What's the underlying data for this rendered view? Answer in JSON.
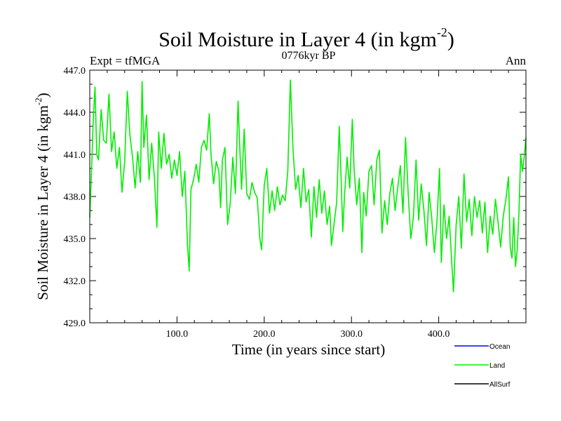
{
  "chart_data": {
    "type": "line",
    "title": "Soil Moisture in Layer 4 (in kgm",
    "title_sup": "-2",
    "title_close": ")",
    "subtitle": "0776kyr BP",
    "left_label": "Expt = tfMGA",
    "right_label": "Ann",
    "xlabel": "Time (in years since start)",
    "ylabel": "Soil Moisture in Layer 4 (in kgm",
    "ylabel_sup": "-2",
    "ylabel_close": ")",
    "xlim": [
      0,
      500
    ],
    "ylim": [
      429.0,
      447.0
    ],
    "x_ticks": [
      100,
      200,
      300,
      400
    ],
    "x_tick_labels": [
      "100.0",
      "200.0",
      "300.0",
      "400.0"
    ],
    "y_ticks": [
      429,
      432,
      435,
      438,
      441,
      444,
      447
    ],
    "y_tick_labels": [
      "429.0",
      "432.0",
      "435.0",
      "438.0",
      "441.0",
      "444.0",
      "447.0"
    ],
    "series": [
      {
        "name": "Land",
        "color": "#00ee00",
        "points": [
          [
            0,
            436.5
          ],
          [
            2,
            439.8
          ],
          [
            4,
            443.5
          ],
          [
            6,
            445.8
          ],
          [
            8,
            441.0
          ],
          [
            10,
            440.6
          ],
          [
            13,
            444.2
          ],
          [
            16,
            442.0
          ],
          [
            19,
            441.8
          ],
          [
            22,
            445.3
          ],
          [
            25,
            441.2
          ],
          [
            28,
            442.6
          ],
          [
            31,
            440.0
          ],
          [
            34,
            441.5
          ],
          [
            37,
            438.3
          ],
          [
            40,
            440.5
          ],
          [
            43,
            445.5
          ],
          [
            46,
            442.4
          ],
          [
            49,
            440.8
          ],
          [
            52,
            438.6
          ],
          [
            55,
            441.2
          ],
          [
            58,
            439.0
          ],
          [
            60,
            446.2
          ],
          [
            62,
            441.5
          ],
          [
            65,
            443.8
          ],
          [
            68,
            439.2
          ],
          [
            71,
            441.8
          ],
          [
            74,
            439.4
          ],
          [
            77,
            435.8
          ],
          [
            79,
            442.6
          ],
          [
            82,
            440.0
          ],
          [
            85,
            442.5
          ],
          [
            88,
            440.3
          ],
          [
            91,
            441.0
          ],
          [
            94,
            439.3
          ],
          [
            97,
            440.6
          ],
          [
            100,
            439.5
          ],
          [
            103,
            441.2
          ],
          [
            106,
            438.0
          ],
          [
            109,
            439.8
          ],
          [
            112,
            434.6
          ],
          [
            114,
            432.7
          ],
          [
            116,
            438.5
          ],
          [
            119,
            439.2
          ],
          [
            122,
            440.3
          ],
          [
            125,
            439.0
          ],
          [
            128,
            441.5
          ],
          [
            131,
            442.0
          ],
          [
            134,
            441.3
          ],
          [
            137,
            443.9
          ],
          [
            139,
            441.0
          ],
          [
            142,
            438.9
          ],
          [
            145,
            440.5
          ],
          [
            148,
            439.8
          ],
          [
            150,
            437.2
          ],
          [
            152,
            440.6
          ],
          [
            155,
            441.5
          ],
          [
            158,
            436.0
          ],
          [
            161,
            437.5
          ],
          [
            164,
            440.8
          ],
          [
            167,
            438.2
          ],
          [
            170,
            444.8
          ],
          [
            172,
            441.4
          ],
          [
            174,
            438.5
          ],
          [
            177,
            442.8
          ],
          [
            180,
            438.2
          ],
          [
            183,
            437.8
          ],
          [
            186,
            439.0
          ],
          [
            189,
            438.3
          ],
          [
            192,
            437.9
          ],
          [
            195,
            435.0
          ],
          [
            197,
            434.2
          ],
          [
            200,
            438.8
          ],
          [
            203,
            440.0
          ],
          [
            206,
            436.8
          ],
          [
            209,
            438.4
          ],
          [
            212,
            437.0
          ],
          [
            215,
            438.7
          ],
          [
            218,
            437.4
          ],
          [
            221,
            438.1
          ],
          [
            224,
            437.7
          ],
          [
            227,
            439.8
          ],
          [
            230,
            446.3
          ],
          [
            233,
            441.3
          ],
          [
            236,
            438.5
          ],
          [
            239,
            439.5
          ],
          [
            242,
            437.2
          ],
          [
            245,
            440.0
          ],
          [
            248,
            437.6
          ],
          [
            251,
            438.5
          ],
          [
            254,
            435.1
          ],
          [
            257,
            438.7
          ],
          [
            260,
            436.5
          ],
          [
            263,
            439.2
          ],
          [
            266,
            436.8
          ],
          [
            269,
            438.4
          ],
          [
            272,
            436.0
          ],
          [
            275,
            437.3
          ],
          [
            277,
            434.5
          ],
          [
            280,
            436.0
          ],
          [
            283,
            437.6
          ],
          [
            286,
            443.0
          ],
          [
            288,
            439.5
          ],
          [
            290,
            435.5
          ],
          [
            292,
            438.0
          ],
          [
            295,
            440.8
          ],
          [
            298,
            438.6
          ],
          [
            301,
            443.5
          ],
          [
            303,
            440.0
          ],
          [
            306,
            437.4
          ],
          [
            309,
            439.3
          ],
          [
            312,
            434.0
          ],
          [
            314,
            438.3
          ],
          [
            317,
            436.6
          ],
          [
            320,
            439.8
          ],
          [
            323,
            440.2
          ],
          [
            326,
            437.4
          ],
          [
            329,
            440.6
          ],
          [
            332,
            441.3
          ],
          [
            335,
            435.4
          ],
          [
            338,
            437.7
          ],
          [
            341,
            436.0
          ],
          [
            344,
            438.2
          ],
          [
            347,
            439.3
          ],
          [
            350,
            437.0
          ],
          [
            353,
            438.6
          ],
          [
            356,
            440.2
          ],
          [
            359,
            436.8
          ],
          [
            362,
            442.2
          ],
          [
            365,
            438.2
          ],
          [
            368,
            435.0
          ],
          [
            371,
            436.5
          ],
          [
            374,
            440.6
          ],
          [
            377,
            436.3
          ],
          [
            380,
            438.9
          ],
          [
            383,
            437.0
          ],
          [
            386,
            434.5
          ],
          [
            389,
            438.3
          ],
          [
            392,
            436.5
          ],
          [
            395,
            434.0
          ],
          [
            398,
            436.2
          ],
          [
            401,
            440.0
          ],
          [
            403,
            433.3
          ],
          [
            406,
            437.4
          ],
          [
            409,
            435.0
          ],
          [
            412,
            436.6
          ],
          [
            415,
            433.2
          ],
          [
            417,
            431.2
          ],
          [
            420,
            436.0
          ],
          [
            423,
            438.0
          ],
          [
            426,
            434.3
          ],
          [
            429,
            439.6
          ],
          [
            432,
            436.2
          ],
          [
            435,
            437.8
          ],
          [
            438,
            435.2
          ],
          [
            441,
            438.0
          ],
          [
            444,
            436.5
          ],
          [
            447,
            437.7
          ],
          [
            450,
            435.4
          ],
          [
            453,
            437.6
          ],
          [
            456,
            434.0
          ],
          [
            459,
            436.6
          ],
          [
            462,
            435.3
          ],
          [
            465,
            437.8
          ],
          [
            468,
            436.2
          ],
          [
            471,
            434.4
          ],
          [
            474,
            436.6
          ],
          [
            477,
            437.8
          ],
          [
            480,
            439.4
          ],
          [
            482,
            434.4
          ],
          [
            484,
            433.6
          ],
          [
            486,
            436.5
          ],
          [
            488,
            433.0
          ],
          [
            490,
            434.2
          ],
          [
            492,
            436.8
          ],
          [
            494,
            441.0
          ],
          [
            496,
            439.8
          ],
          [
            498,
            440.8
          ],
          [
            500,
            442.2
          ]
        ]
      }
    ],
    "legend": [
      {
        "name": "Ocean",
        "color": "#0000ff"
      },
      {
        "name": "Land",
        "color": "#00ee00"
      },
      {
        "name": "AllSurf",
        "color": "#000000"
      }
    ]
  }
}
